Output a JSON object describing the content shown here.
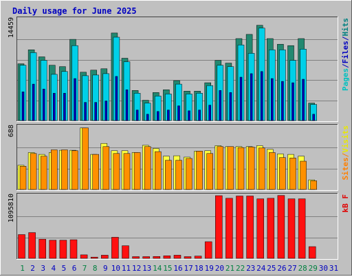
{
  "chart_data": {
    "type": "bar",
    "title": "Daily usage for June 2025",
    "categories": [
      "1",
      "2",
      "3",
      "4",
      "5",
      "6",
      "7",
      "8",
      "9",
      "10",
      "11",
      "12",
      "13",
      "14",
      "15",
      "16",
      "17",
      "18",
      "19",
      "20",
      "21",
      "22",
      "23",
      "24",
      "25",
      "26",
      "27",
      "28",
      "29",
      "30",
      "31"
    ],
    "weekend_categories": [
      "1",
      "7",
      "8",
      "14",
      "15",
      "21",
      "22",
      "28",
      "29"
    ],
    "panels": [
      {
        "id": "top",
        "ymax_label": "14459",
        "ymax": 14459,
        "legend": [
          {
            "text": "Pages",
            "color": "#00c0c0"
          },
          {
            "text": "/",
            "color": "#0000c0"
          },
          {
            "text": "Files",
            "color": "#0000c0"
          },
          {
            "text": "/",
            "color": "#0000c0"
          },
          {
            "text": "Hits",
            "color": "#008080"
          }
        ],
        "series": [
          {
            "name": "Hits",
            "color": "#238870",
            "values": [
              8100,
              10100,
              9100,
              7900,
              7700,
              11600,
              6900,
              7200,
              7400,
              12500,
              8900,
              4300,
              2900,
              4000,
              4400,
              5700,
              4200,
              4200,
              5400,
              8600,
              8200,
              11700,
              12300,
              13600,
              11700,
              10900,
              10700,
              11700,
              2500,
              null,
              null
            ]
          },
          {
            "name": "Files",
            "color": "#0000c0",
            "values": [
              4100,
              5200,
              4500,
              3900,
              3900,
              6000,
              2600,
              2600,
              2800,
              6300,
              4400,
              1500,
              900,
              1300,
              1500,
              2100,
              1400,
              1500,
              2200,
              4300,
              4000,
              6200,
              6700,
              7000,
              6000,
              5600,
              5400,
              5900,
              900,
              null,
              null
            ]
          },
          {
            "name": "Pages",
            "color": "#00d0e8",
            "values": [
              7900,
              9700,
              8600,
              6600,
              7000,
              10700,
              6400,
              6500,
              6700,
              11900,
              8400,
              3900,
              2500,
              3500,
              3800,
              5200,
              3800,
              3900,
              5000,
              7900,
              7700,
              10800,
              9600,
              13200,
              10100,
              10100,
              8600,
              10200,
              2300,
              null,
              null
            ]
          }
        ]
      },
      {
        "id": "middle",
        "ymax_label": "688",
        "ymax": 688,
        "legend": [
          {
            "text": "Sites",
            "color": "#ff8000"
          },
          {
            "text": "/",
            "color": "#ff8000"
          },
          {
            "text": "Visits",
            "color": "#e8e800"
          }
        ],
        "series": [
          {
            "name": "Visits",
            "color": "#ffff40",
            "values": [
              265,
              405,
              385,
              405,
              430,
              430,
              675,
              385,
              505,
              425,
              425,
              405,
              485,
              450,
              365,
              370,
              355,
              420,
              425,
              480,
              470,
              470,
              470,
              480,
              440,
              390,
              385,
              365,
              105,
              null,
              null
            ]
          },
          {
            "name": "Sites",
            "color": "#ff9000",
            "values": [
              255,
              395,
              365,
              435,
              435,
              425,
              675,
              385,
              470,
              395,
              395,
              405,
              470,
              415,
              320,
              320,
              340,
              420,
              395,
              470,
              470,
              460,
              465,
              455,
              405,
              350,
              345,
              310,
              95,
              null,
              null
            ]
          }
        ]
      },
      {
        "id": "bottom",
        "ymax_label": "1095810",
        "ymax": 1095810,
        "legend": [
          {
            "text": "KBytes",
            "display": "kB F",
            "color": "#e00000"
          }
        ],
        "series": [
          {
            "name": "KBytes",
            "color": "#ff1010",
            "values": [
              415000,
              450000,
              335000,
              318000,
              318000,
              325000,
              62000,
              22000,
              55000,
              368000,
              220000,
              30000,
              30000,
              32000,
              45000,
              55000,
              30000,
              40000,
              290000,
              1095810,
              1050000,
              1090000,
              1090000,
              1040000,
              1050000,
              1100000,
              1040000,
              1040000,
              205000,
              null,
              null
            ]
          }
        ]
      }
    ],
    "colors": {
      "background": "#c0c0c0",
      "grid": "#808080",
      "title": "#0000c0",
      "weekday_label": "#0000c0",
      "weekend_label": "#008040"
    }
  }
}
